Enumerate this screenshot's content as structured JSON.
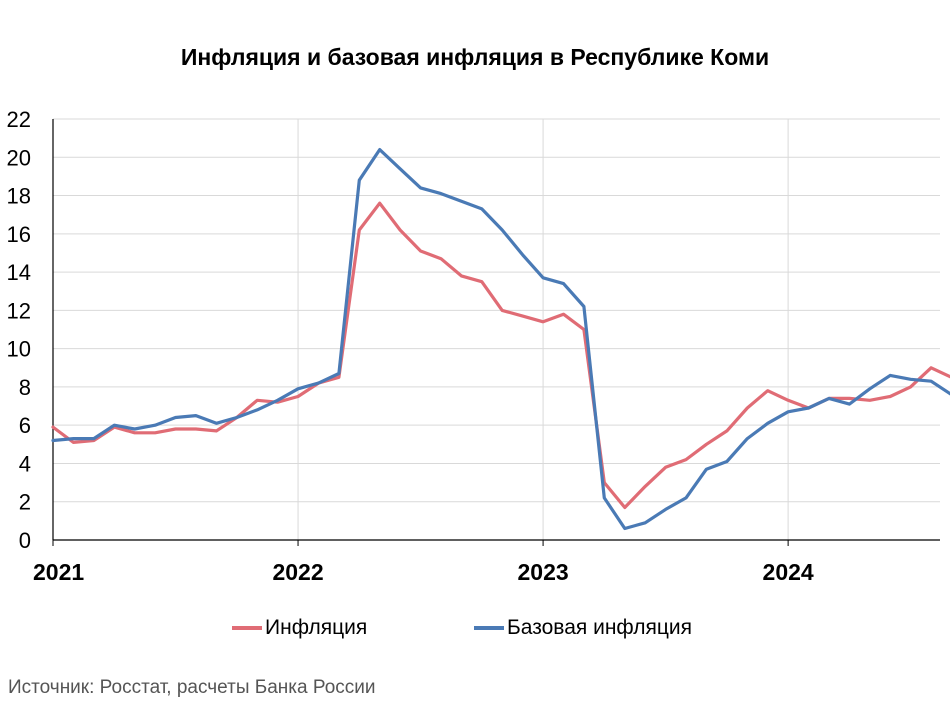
{
  "chart_data": {
    "type": "line",
    "title": "Инфляция и базовая инфляция в Республике Коми",
    "xlabel": "",
    "ylabel": "",
    "x_tick_labels": [
      "2021",
      "2022",
      "2023",
      "2024"
    ],
    "x_tick_values": [
      0,
      12,
      24,
      36
    ],
    "x_range": [
      0,
      44
    ],
    "ylim": [
      0,
      22
    ],
    "y_ticks": [
      0,
      2,
      4,
      6,
      8,
      10,
      12,
      14,
      16,
      18,
      20,
      22
    ],
    "grid": true,
    "legend_position": "bottom",
    "series": [
      {
        "name": "Инфляция",
        "color": "#e06c75",
        "values": [
          5.9,
          5.1,
          5.2,
          5.9,
          5.6,
          5.6,
          5.8,
          5.8,
          5.7,
          6.4,
          7.3,
          7.2,
          7.5,
          8.2,
          8.5,
          16.2,
          17.6,
          16.2,
          15.1,
          14.7,
          13.8,
          13.5,
          12.0,
          11.7,
          11.4,
          11.8,
          11.0,
          3.0,
          1.7,
          2.8,
          3.8,
          4.2,
          5.0,
          5.7,
          6.9,
          7.8,
          7.3,
          6.9,
          7.4,
          7.4,
          7.3,
          7.5,
          8.0,
          9.0,
          8.5
        ]
      },
      {
        "name": "Базовая инфляция",
        "color": "#4a7ab5",
        "values": [
          5.2,
          5.3,
          5.3,
          6.0,
          5.8,
          6.0,
          6.4,
          6.5,
          6.1,
          6.4,
          6.8,
          7.3,
          7.9,
          8.2,
          8.7,
          18.8,
          20.4,
          19.4,
          18.4,
          18.1,
          17.7,
          17.3,
          16.2,
          14.9,
          13.7,
          13.4,
          12.2,
          2.2,
          0.6,
          0.9,
          1.6,
          2.2,
          3.7,
          4.1,
          5.3,
          6.1,
          6.7,
          6.9,
          7.4,
          7.1,
          7.9,
          8.6,
          8.4,
          8.3,
          7.6
        ]
      }
    ]
  },
  "source_text": "Источник: Росстат, расчеты Банка России"
}
